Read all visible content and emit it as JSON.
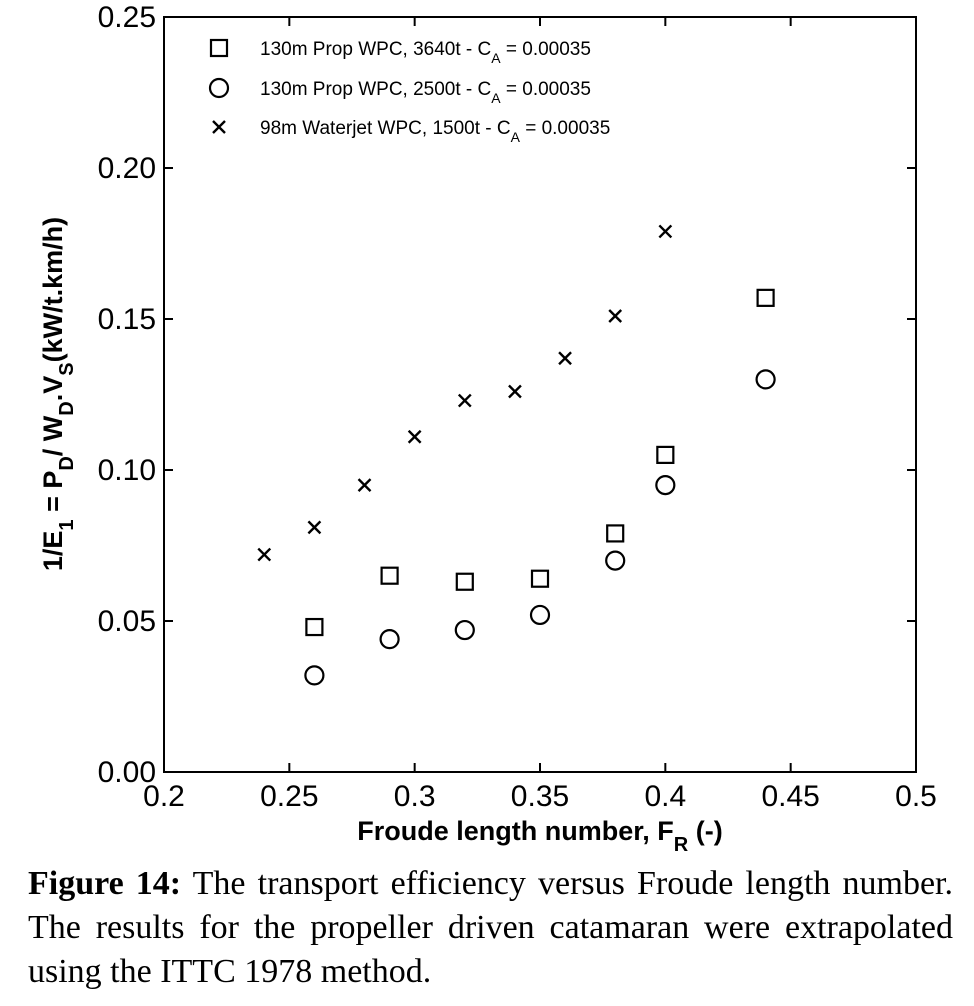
{
  "chart_data": {
    "type": "scatter",
    "xlim": [
      0.2,
      0.5
    ],
    "ylim": [
      0.0,
      0.25
    ],
    "xticks": [
      "0.2",
      "0.25",
      "0.3",
      "0.35",
      "0.4",
      "0.45",
      "0.5"
    ],
    "yticks": [
      "0.00",
      "0.05",
      "0.10",
      "0.15",
      "0.20",
      "0.25"
    ],
    "xlabel": {
      "main": "Froude length number, F",
      "sub": "R",
      "tail": " (-)"
    },
    "ylabel": {
      "p1": "1/E",
      "s1": "1",
      "p2": " = P",
      "s2": "D",
      "p3": "/ W",
      "s3": "D",
      "p4": ".V",
      "s4": "S",
      "p5": "(kW/t.km/h)"
    },
    "grid": false,
    "legend_position": "top-left",
    "series": [
      {
        "name": "130m Prop WPC, 3640t - CA = 0.00035",
        "legend": {
          "main": "130m Prop WPC, 3640t - C",
          "sub": "A",
          "tail": " = 0.00035"
        },
        "marker": "square",
        "points": [
          [
            0.26,
            0.048
          ],
          [
            0.29,
            0.065
          ],
          [
            0.32,
            0.063
          ],
          [
            0.35,
            0.064
          ],
          [
            0.38,
            0.079
          ],
          [
            0.4,
            0.105
          ],
          [
            0.44,
            0.157
          ]
        ]
      },
      {
        "name": "130m Prop WPC, 2500t - CA = 0.00035",
        "legend": {
          "main": "130m Prop WPC, 2500t - C",
          "sub": "A",
          "tail": " = 0.00035"
        },
        "marker": "circle",
        "points": [
          [
            0.26,
            0.032
          ],
          [
            0.29,
            0.044
          ],
          [
            0.32,
            0.047
          ],
          [
            0.35,
            0.052
          ],
          [
            0.38,
            0.07
          ],
          [
            0.4,
            0.095
          ],
          [
            0.44,
            0.13
          ]
        ]
      },
      {
        "name": "98m Waterjet WPC, 1500t - CA = 0.00035",
        "legend": {
          "main": "98m Waterjet WPC, 1500t - C",
          "sub": "A",
          "tail": " = 0.00035"
        },
        "marker": "x",
        "points": [
          [
            0.24,
            0.072
          ],
          [
            0.26,
            0.081
          ],
          [
            0.28,
            0.095
          ],
          [
            0.3,
            0.111
          ],
          [
            0.32,
            0.123
          ],
          [
            0.34,
            0.126
          ],
          [
            0.36,
            0.137
          ],
          [
            0.38,
            0.151
          ],
          [
            0.4,
            0.179
          ]
        ]
      }
    ]
  },
  "caption": {
    "label": "Figure 14:",
    "text": " The transport efficiency versus Froude length number. The results for the propeller driven catamaran were extrapolated using the ITTC 1978 method."
  }
}
